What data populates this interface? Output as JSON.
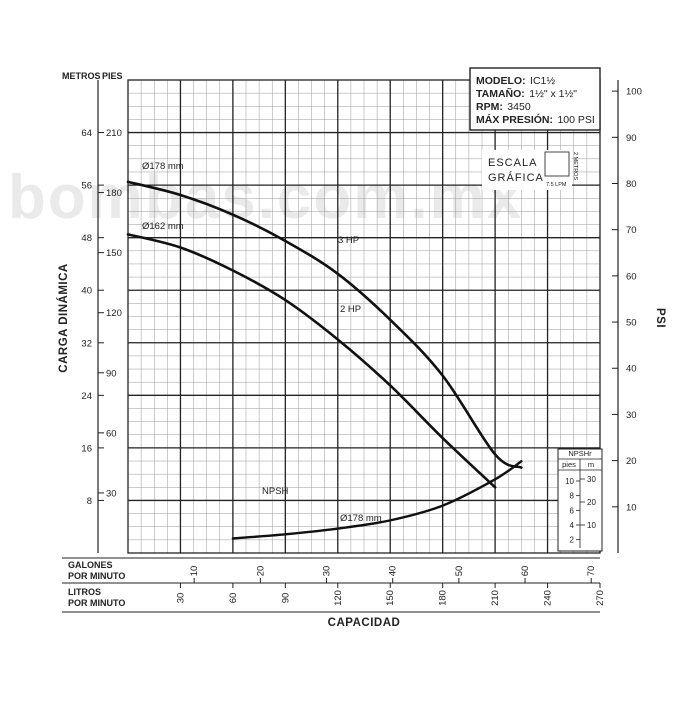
{
  "chart_data": {
    "type": "line",
    "watermark": "bombas.com.mx",
    "info_box": {
      "modelo_label": "MODELO:",
      "modelo_value": "IC1½",
      "tamano_label": "TAMAÑO:",
      "tamano_value": "1½\" x 1½\"",
      "rpm_label": "RPM:",
      "rpm_value": "3450",
      "presion_label": "MÁX PRESIÓN:",
      "presion_value": "100 PSI"
    },
    "escala": {
      "title_line1": "ESCALA",
      "title_line2": "GRÁFICA",
      "x_unit": "7.5 LPM",
      "y_unit": "2 METROS"
    },
    "axes": {
      "xlabel": "CAPACIDAD",
      "ylabel": "CARGA DINÁMICA",
      "y2label": "PSI",
      "metros_label": "METROS",
      "pies_label": "PIES",
      "gpm_label_1": "GALONES",
      "gpm_label_2": "POR MINUTO",
      "lpm_label_1": "LITROS",
      "lpm_label_2": "POR MINUTO",
      "xlim_lpm": [
        0,
        270
      ],
      "ylim_metros": [
        0,
        72
      ],
      "metros_ticks": [
        "8",
        "16",
        "24",
        "32",
        "40",
        "48",
        "56",
        "64"
      ],
      "pies_ticks": [
        "30",
        "60",
        "90",
        "120",
        "150",
        "180",
        "210"
      ],
      "psi_ticks": [
        "10",
        "20",
        "30",
        "40",
        "50",
        "60",
        "70",
        "80",
        "90",
        "100"
      ],
      "lpm_ticks": [
        "30",
        "60",
        "90",
        "120",
        "150",
        "180",
        "210",
        "240",
        "270"
      ],
      "gpm_ticks": [
        "10",
        "20",
        "30",
        "40",
        "50",
        "60",
        "70"
      ],
      "grid": true
    },
    "series": [
      {
        "name": "Ø178 mm",
        "curve_label": "3 HP",
        "x": [
          0,
          30,
          60,
          90,
          120,
          150,
          180,
          210,
          225
        ],
        "y": [
          56.5,
          54.5,
          51.5,
          47.5,
          42.5,
          35.5,
          27,
          15,
          13
        ]
      },
      {
        "name": "Ø162 mm",
        "curve_label": "2 HP",
        "x": [
          0,
          30,
          60,
          90,
          120,
          150,
          180,
          210
        ],
        "y": [
          48.5,
          46.5,
          43,
          38.5,
          32.5,
          25.5,
          17.5,
          10
        ]
      },
      {
        "name": "Ø178 mm",
        "curve_label": "NPSH",
        "x": [
          60,
          90,
          120,
          150,
          180,
          210,
          225
        ],
        "y_npsh_m": [
          1.8,
          2.3,
          3.0,
          4.0,
          5.8,
          9,
          11.2
        ]
      }
    ],
    "npsh_scale": {
      "title": "NPSHr",
      "pies_label": "pies",
      "m_label": "m",
      "pies_ticks": [
        "2",
        "4",
        "6",
        "8",
        "10"
      ],
      "m_ticks": [
        "10",
        "20",
        "30"
      ]
    }
  }
}
